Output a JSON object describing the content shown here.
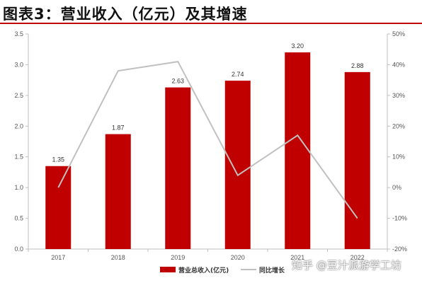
{
  "title": "图表3：营业收入（亿元）及其增速",
  "watermark": "知乎 @豆汁派游学工坊",
  "colors": {
    "bar": "#c00000",
    "line": "#c0c0c0",
    "title_rule": "#c00000"
  },
  "chart_data": {
    "type": "bar",
    "categories": [
      "2017",
      "2018",
      "2019",
      "2020",
      "2021",
      "2022"
    ],
    "series": [
      {
        "name": "营业总收入(亿元)",
        "type": "bar",
        "axis": "left",
        "values": [
          1.35,
          1.87,
          2.63,
          2.74,
          3.2,
          2.88
        ],
        "labels": [
          "1.35",
          "1.87",
          "2.63",
          "2.74",
          "3.20",
          "2.88"
        ]
      },
      {
        "name": "同比增长",
        "type": "line",
        "axis": "right",
        "values": [
          0,
          38,
          41,
          4,
          17,
          -10
        ]
      }
    ],
    "y_left": {
      "ylim": [
        0,
        3.5
      ],
      "ticks": [
        "0.0",
        "0.5",
        "1.0",
        "1.5",
        "2.0",
        "2.5",
        "3.0",
        "3.5"
      ]
    },
    "y_right": {
      "ylim": [
        -20,
        50
      ],
      "ticks": [
        "-20%",
        "-10%",
        "0%",
        "10%",
        "20%",
        "30%",
        "40%",
        "50%"
      ]
    },
    "legend_position": "bottom-center",
    "grid": false
  }
}
